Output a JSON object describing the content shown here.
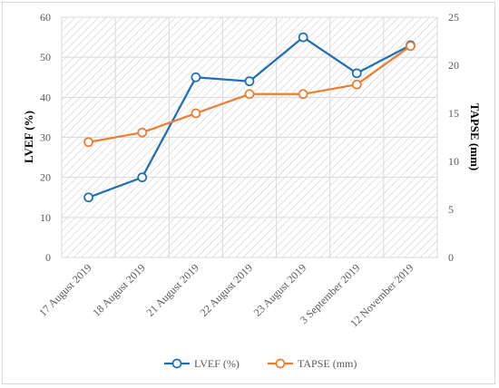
{
  "chart_data": {
    "type": "line",
    "categories": [
      "17 August 2019",
      "18 August 2019",
      "21 August 2019",
      "22 August 2019",
      "23 August 2019",
      "3 September 2019",
      "12 November 2019"
    ],
    "series": [
      {
        "name": "LVEF (%)",
        "axis": "left",
        "color": "#1f6fb5",
        "values": [
          15,
          20,
          45,
          44,
          55,
          46,
          53
        ]
      },
      {
        "name": "TAPSE (mm)",
        "axis": "right",
        "color": "#ed7d31",
        "values": [
          12,
          13,
          15,
          17,
          17,
          18,
          22
        ]
      }
    ],
    "ylabel_left": "LVEF (%)",
    "ylabel_right": "TAPSE (mm)",
    "ylim_left": [
      0,
      60
    ],
    "yticks_left": [
      "0",
      "10",
      "20",
      "30",
      "40",
      "50",
      "60"
    ],
    "ylim_right": [
      0,
      25
    ],
    "yticks_right": [
      "0",
      "5",
      "10",
      "15",
      "20",
      "25"
    ],
    "grid": true,
    "plot_background": "diagonal hatch",
    "legend": "bottom-center"
  }
}
